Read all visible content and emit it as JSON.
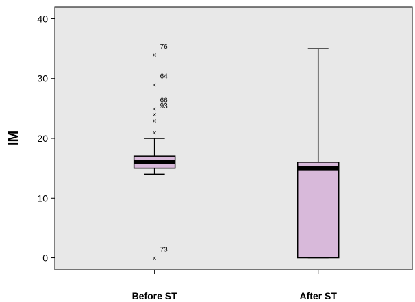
{
  "chart_data": {
    "type": "boxplot",
    "ylabel": "IM",
    "ylim": [
      -2,
      42
    ],
    "yticks": [
      0,
      10,
      20,
      30,
      40
    ],
    "categories": [
      "Before ST",
      "After ST"
    ],
    "colors": {
      "box_fill": "#d8b9da",
      "plot_bg": "#e8e8e8",
      "median": "#000000"
    },
    "boxes": [
      {
        "category": "Before ST",
        "whisker_low": 14,
        "q1": 15,
        "median": 16,
        "q3": 17,
        "whisker_high": 20,
        "outliers": [
          {
            "value": 34,
            "label": "76"
          },
          {
            "value": 29,
            "label": "64"
          },
          {
            "value": 25,
            "label": "66"
          },
          {
            "value": 24,
            "label": "93"
          },
          {
            "value": 23,
            "label": ""
          },
          {
            "value": 21,
            "label": ""
          },
          {
            "value": 0,
            "label": "73"
          }
        ]
      },
      {
        "category": "After ST",
        "whisker_low": 0,
        "q1": 0,
        "median": 15,
        "q3": 16,
        "whisker_high": 35,
        "outliers": []
      }
    ]
  }
}
